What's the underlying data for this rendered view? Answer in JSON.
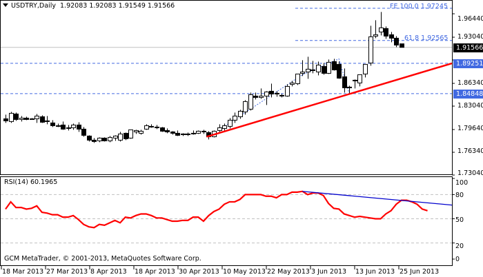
{
  "header": {
    "symbol": "USDTRY,Daily",
    "ohlc": "1.92083 1.92083 1.91549 1.91566"
  },
  "rsi_panel": {
    "title": "RSI(14) 60.1965"
  },
  "footer": {
    "copyright": "GCM MetaTrader, © 2001-2013, MetaQuotes Software Corp."
  },
  "colors": {
    "trendline": "#ff0000",
    "rsi_line": "#ff0000",
    "rsi_divergence": "#0000cd",
    "level_line": "#4169e1",
    "label_box": "#4169e1",
    "current_price_box": "#000000"
  },
  "price_axis": {
    "ticks": [
      "1.96440",
      "1.93040",
      "1.86340",
      "1.83040",
      "1.79640",
      "1.76340",
      "1.73040"
    ],
    "current_price": "1.91566",
    "level_labels": [
      "1.89251",
      "1.84848"
    ]
  },
  "fib_labels": {
    "fe100": "FE 100.0 1.97245",
    "fe618": "61.8 1.92565"
  },
  "rsi_axis": {
    "ticks": [
      "100",
      "80",
      "50",
      "20",
      "0"
    ]
  },
  "time_axis": {
    "labels": [
      "18 Mar 2013",
      "27 Mar 2013",
      "8 Apr 2013",
      "18 Apr 2013",
      "30 Apr 2013",
      "10 May 2013",
      "22 May 2013",
      "3 Jun 2013",
      "13 Jun 2013",
      "25 Jun 2013"
    ]
  },
  "chart_data": [
    {
      "type": "candlestick",
      "title": "USDTRY,Daily 1.92083 1.92083 1.91549 1.91566",
      "xlabel": "",
      "ylabel": "",
      "ylim": [
        1.72,
        1.985
      ],
      "x_tick_labels": [
        "18 Mar 2013",
        "27 Mar 2013",
        "8 Apr 2013",
        "18 Apr 2013",
        "30 Apr 2013",
        "10 May 2013",
        "22 May 2013",
        "3 Jun 2013",
        "13 Jun 2013",
        "25 Jun 2013"
      ],
      "y_tick_labels": [
        "1.96440",
        "1.93040",
        "1.86340",
        "1.83040",
        "1.79640",
        "1.76340",
        "1.73040"
      ],
      "current_price": 1.91566,
      "horizontal_levels": [
        1.97245,
        1.92565,
        1.89251,
        1.84848
      ],
      "annotations": [
        "FE 100.0 1.97245",
        "FE 61.8 1.92565",
        "1.89251",
        "1.84848",
        "rising red support trendline from ~1.785 (10 May) to ~1.892 (right edge)"
      ],
      "candles": [
        {
          "o": 1.812,
          "h": 1.818,
          "l": 1.806,
          "c": 1.809
        },
        {
          "o": 1.808,
          "h": 1.822,
          "l": 1.806,
          "c": 1.82
        },
        {
          "o": 1.819,
          "h": 1.821,
          "l": 1.809,
          "c": 1.811
        },
        {
          "o": 1.811,
          "h": 1.816,
          "l": 1.808,
          "c": 1.813
        },
        {
          "o": 1.813,
          "h": 1.815,
          "l": 1.81,
          "c": 1.811
        },
        {
          "o": 1.812,
          "h": 1.813,
          "l": 1.811,
          "c": 1.812
        },
        {
          "o": 1.812,
          "h": 1.819,
          "l": 1.806,
          "c": 1.816
        },
        {
          "o": 1.815,
          "h": 1.817,
          "l": 1.806,
          "c": 1.807
        },
        {
          "o": 1.809,
          "h": 1.816,
          "l": 1.804,
          "c": 1.808
        },
        {
          "o": 1.806,
          "h": 1.81,
          "l": 1.8,
          "c": 1.802
        },
        {
          "o": 1.802,
          "h": 1.805,
          "l": 1.8,
          "c": 1.802
        },
        {
          "o": 1.803,
          "h": 1.808,
          "l": 1.796,
          "c": 1.797
        },
        {
          "o": 1.799,
          "h": 1.803,
          "l": 1.795,
          "c": 1.799
        },
        {
          "o": 1.799,
          "h": 1.805,
          "l": 1.796,
          "c": 1.803
        },
        {
          "o": 1.803,
          "h": 1.807,
          "l": 1.793,
          "c": 1.797
        },
        {
          "o": 1.797,
          "h": 1.8,
          "l": 1.786,
          "c": 1.788
        },
        {
          "o": 1.787,
          "h": 1.788,
          "l": 1.779,
          "c": 1.781
        },
        {
          "o": 1.781,
          "h": 1.784,
          "l": 1.777,
          "c": 1.779
        },
        {
          "o": 1.78,
          "h": 1.785,
          "l": 1.778,
          "c": 1.784
        },
        {
          "o": 1.784,
          "h": 1.785,
          "l": 1.779,
          "c": 1.78
        },
        {
          "o": 1.78,
          "h": 1.787,
          "l": 1.778,
          "c": 1.785
        },
        {
          "o": 1.784,
          "h": 1.788,
          "l": 1.78,
          "c": 1.787
        },
        {
          "o": 1.781,
          "h": 1.793,
          "l": 1.779,
          "c": 1.79
        },
        {
          "o": 1.791,
          "h": 1.792,
          "l": 1.781,
          "c": 1.783
        },
        {
          "o": 1.784,
          "h": 1.796,
          "l": 1.783,
          "c": 1.796
        },
        {
          "o": 1.793,
          "h": 1.796,
          "l": 1.79,
          "c": 1.795
        },
        {
          "o": 1.791,
          "h": 1.796,
          "l": 1.789,
          "c": 1.794
        },
        {
          "o": 1.797,
          "h": 1.804,
          "l": 1.796,
          "c": 1.802
        },
        {
          "o": 1.801,
          "h": 1.804,
          "l": 1.799,
          "c": 1.801
        },
        {
          "o": 1.8,
          "h": 1.803,
          "l": 1.797,
          "c": 1.799
        },
        {
          "o": 1.799,
          "h": 1.8,
          "l": 1.793,
          "c": 1.794
        },
        {
          "o": 1.795,
          "h": 1.798,
          "l": 1.791,
          "c": 1.793
        },
        {
          "o": 1.793,
          "h": 1.794,
          "l": 1.789,
          "c": 1.791
        },
        {
          "o": 1.791,
          "h": 1.795,
          "l": 1.787,
          "c": 1.788
        },
        {
          "o": 1.79,
          "h": 1.791,
          "l": 1.787,
          "c": 1.79
        },
        {
          "o": 1.79,
          "h": 1.792,
          "l": 1.787,
          "c": 1.789
        },
        {
          "o": 1.791,
          "h": 1.795,
          "l": 1.789,
          "c": 1.791
        },
        {
          "o": 1.791,
          "h": 1.795,
          "l": 1.79,
          "c": 1.794
        },
        {
          "o": 1.794,
          "h": 1.796,
          "l": 1.79,
          "c": 1.793
        },
        {
          "o": 1.792,
          "h": 1.794,
          "l": 1.782,
          "c": 1.786
        },
        {
          "o": 1.786,
          "h": 1.795,
          "l": 1.785,
          "c": 1.794
        },
        {
          "o": 1.795,
          "h": 1.804,
          "l": 1.793,
          "c": 1.799
        },
        {
          "o": 1.798,
          "h": 1.805,
          "l": 1.795,
          "c": 1.802
        },
        {
          "o": 1.801,
          "h": 1.813,
          "l": 1.798,
          "c": 1.81
        },
        {
          "o": 1.81,
          "h": 1.821,
          "l": 1.806,
          "c": 1.816
        },
        {
          "o": 1.815,
          "h": 1.825,
          "l": 1.812,
          "c": 1.823
        },
        {
          "o": 1.822,
          "h": 1.839,
          "l": 1.818,
          "c": 1.837
        },
        {
          "o": 1.826,
          "h": 1.85,
          "l": 1.824,
          "c": 1.847
        },
        {
          "o": 1.845,
          "h": 1.85,
          "l": 1.84,
          "c": 1.843
        },
        {
          "o": 1.843,
          "h": 1.856,
          "l": 1.841,
          "c": 1.845
        },
        {
          "o": 1.845,
          "h": 1.852,
          "l": 1.832,
          "c": 1.851
        },
        {
          "o": 1.852,
          "h": 1.863,
          "l": 1.843,
          "c": 1.848
        },
        {
          "o": 1.849,
          "h": 1.852,
          "l": 1.844,
          "c": 1.848
        },
        {
          "o": 1.846,
          "h": 1.848,
          "l": 1.843,
          "c": 1.845
        },
        {
          "o": 1.845,
          "h": 1.862,
          "l": 1.844,
          "c": 1.859
        },
        {
          "o": 1.862,
          "h": 1.867,
          "l": 1.859,
          "c": 1.864
        },
        {
          "o": 1.863,
          "h": 1.876,
          "l": 1.861,
          "c": 1.877
        },
        {
          "o": 1.878,
          "h": 1.897,
          "l": 1.874,
          "c": 1.88
        },
        {
          "o": 1.88,
          "h": 1.902,
          "l": 1.87,
          "c": 1.884
        },
        {
          "o": 1.882,
          "h": 1.896,
          "l": 1.878,
          "c": 1.883
        },
        {
          "o": 1.88,
          "h": 1.895,
          "l": 1.875,
          "c": 1.89
        },
        {
          "o": 1.888,
          "h": 1.893,
          "l": 1.876,
          "c": 1.878
        },
        {
          "o": 1.878,
          "h": 1.898,
          "l": 1.877,
          "c": 1.894
        },
        {
          "o": 1.895,
          "h": 1.899,
          "l": 1.882,
          "c": 1.883
        },
        {
          "o": 1.891,
          "h": 1.895,
          "l": 1.87,
          "c": 1.871
        },
        {
          "o": 1.873,
          "h": 1.885,
          "l": 1.85,
          "c": 1.857
        },
        {
          "o": 1.858,
          "h": 1.86,
          "l": 1.848,
          "c": 1.858
        },
        {
          "o": 1.867,
          "h": 1.869,
          "l": 1.856,
          "c": 1.868
        },
        {
          "o": 1.864,
          "h": 1.873,
          "l": 1.859,
          "c": 1.876
        },
        {
          "o": 1.877,
          "h": 1.891,
          "l": 1.872,
          "c": 1.891
        },
        {
          "o": 1.893,
          "h": 1.947,
          "l": 1.889,
          "c": 1.931
        },
        {
          "o": 1.932,
          "h": 1.955,
          "l": 1.929,
          "c": 1.934
        },
        {
          "o": 1.938,
          "h": 1.967,
          "l": 1.933,
          "c": 1.944
        },
        {
          "o": 1.943,
          "h": 1.946,
          "l": 1.928,
          "c": 1.932
        },
        {
          "o": 1.934,
          "h": 1.938,
          "l": 1.923,
          "c": 1.929
        },
        {
          "o": 1.929,
          "h": 1.932,
          "l": 1.916,
          "c": 1.919
        },
        {
          "o": 1.92083,
          "h": 1.92083,
          "l": 1.91549,
          "c": 1.91566
        }
      ]
    },
    {
      "type": "line",
      "title": "RSI(14) 60.1965",
      "ylim": [
        0,
        100
      ],
      "y_tick_labels": [
        "100",
        "80",
        "50",
        "20",
        "0"
      ],
      "horizontal_levels": [
        80,
        50,
        20
      ],
      "series": [
        {
          "name": "RSI(14)",
          "values": [
            62,
            71,
            64,
            64,
            62,
            63,
            66,
            58,
            57,
            55,
            55,
            52,
            52,
            54,
            49,
            43,
            40,
            39,
            43,
            42,
            45,
            48,
            45,
            52,
            51,
            54,
            56,
            56,
            54,
            51,
            51,
            49,
            47,
            47,
            48,
            48,
            52,
            52,
            47,
            54,
            59,
            62,
            68,
            71,
            71,
            74,
            80,
            80,
            80,
            80,
            78,
            78,
            76,
            80,
            80,
            83,
            83,
            84,
            80,
            82,
            82,
            79,
            69,
            63,
            62,
            56,
            54,
            52,
            53,
            52,
            51,
            50,
            50,
            56,
            60,
            68,
            73,
            73,
            71,
            68,
            62,
            60
          ]
        },
        {
          "name": "RSI divergence line",
          "values": [
            84,
            67
          ]
        }
      ],
      "current_value": 60.1965
    }
  ]
}
